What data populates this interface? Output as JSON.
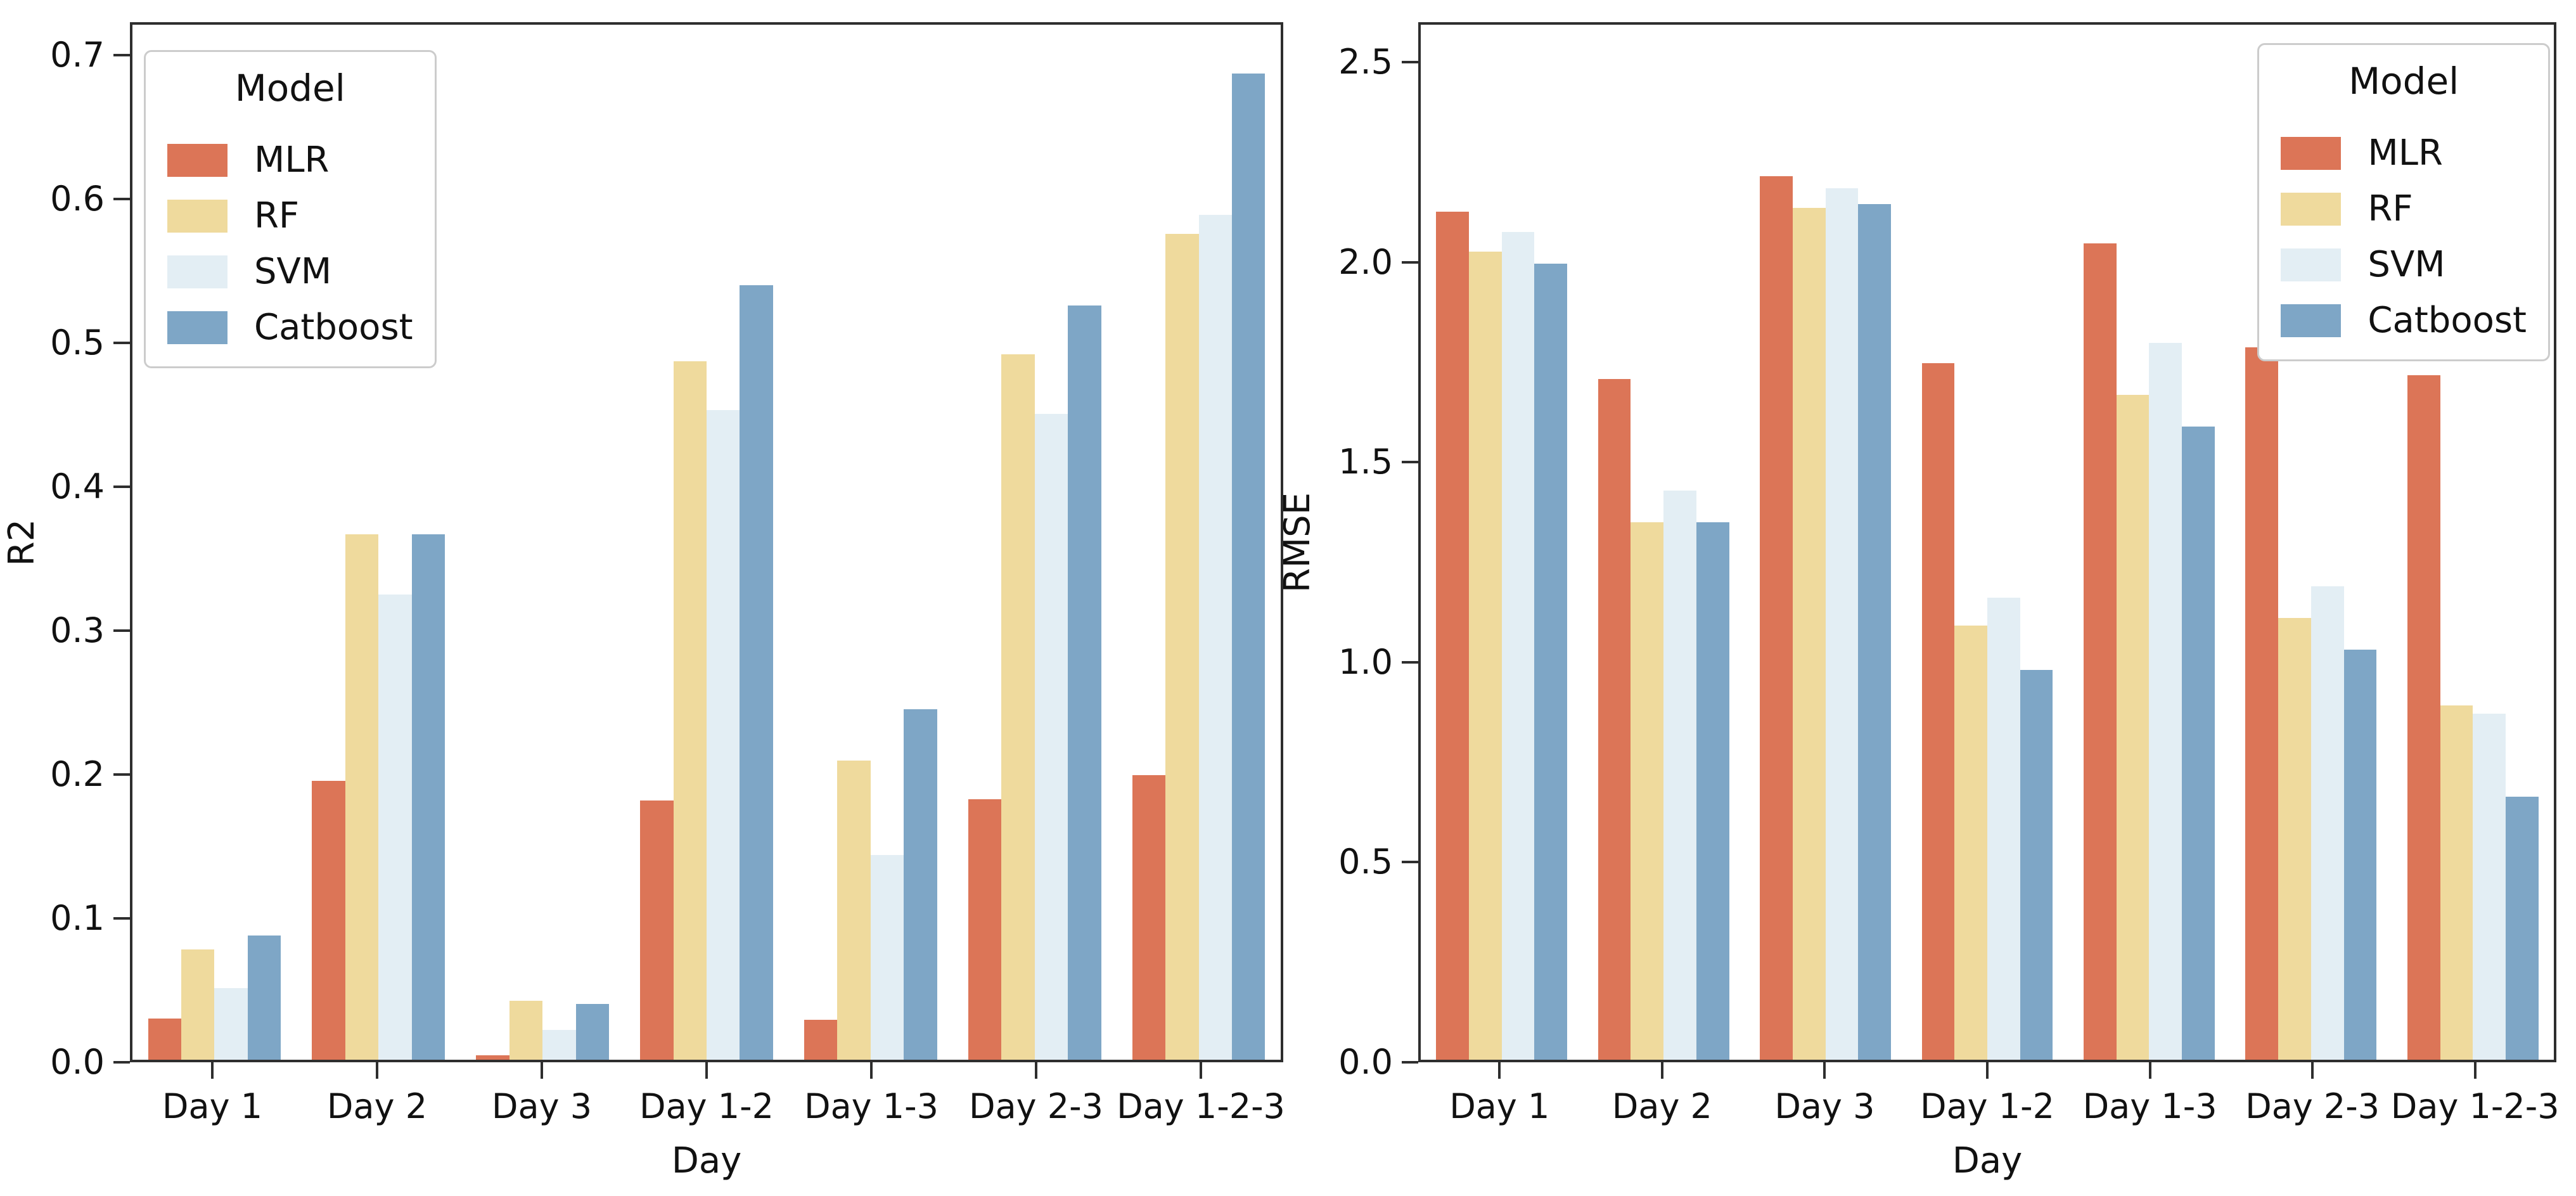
{
  "figure_background": "#ffffff",
  "spine_color": "#2e2e2e",
  "chart_data": [
    {
      "type": "bar",
      "title": "",
      "xlabel": "Day",
      "ylabel": "R2",
      "categories": [
        "Day 1",
        "Day 2",
        "Day 3",
        "Day 1-2",
        "Day 1-3",
        "Day 2-3",
        "Day 1-2-3"
      ],
      "series": [
        {
          "name": "MLR",
          "color": "#DC7557",
          "values": [
            0.029,
            0.195,
            0.003,
            0.181,
            0.028,
            0.182,
            0.199
          ]
        },
        {
          "name": "RF",
          "color": "#EFDA9D",
          "values": [
            0.077,
            0.367,
            0.041,
            0.488,
            0.209,
            0.493,
            0.577
          ]
        },
        {
          "name": "SVM",
          "color": "#E3EEF4",
          "values": [
            0.05,
            0.325,
            0.021,
            0.454,
            0.143,
            0.451,
            0.59
          ]
        },
        {
          "name": "Catboost",
          "color": "#7EA6C6",
          "values": [
            0.087,
            0.367,
            0.039,
            0.541,
            0.245,
            0.527,
            0.689
          ]
        }
      ],
      "ylim": [
        0,
        0.723
      ],
      "yticks": [
        "0.0",
        "0.1",
        "0.2",
        "0.3",
        "0.4",
        "0.5",
        "0.6",
        "0.7"
      ],
      "grid": false,
      "legend": {
        "title": "Model",
        "position": "top-left",
        "entries": [
          "MLR",
          "RF",
          "SVM",
          "Catboost"
        ]
      }
    },
    {
      "type": "bar",
      "title": "",
      "xlabel": "Day",
      "ylabel": "RMSE",
      "categories": [
        "Day 1",
        "Day 2",
        "Day 3",
        "Day 1-2",
        "Day 1-3",
        "Day 2-3",
        "Day 1-2-3"
      ],
      "series": [
        {
          "name": "MLR",
          "color": "#DC7557",
          "values": [
            2.13,
            1.71,
            2.22,
            1.75,
            2.05,
            1.79,
            1.72
          ]
        },
        {
          "name": "RF",
          "color": "#EFDA9D",
          "values": [
            2.03,
            1.35,
            2.14,
            1.09,
            1.67,
            1.11,
            0.89
          ]
        },
        {
          "name": "SVM",
          "color": "#E3EEF4",
          "values": [
            2.08,
            1.43,
            2.19,
            1.16,
            1.8,
            1.19,
            0.87
          ]
        },
        {
          "name": "Catboost",
          "color": "#7EA6C6",
          "values": [
            2.0,
            1.35,
            2.15,
            0.98,
            1.59,
            1.03,
            0.66
          ]
        }
      ],
      "ylim": [
        0,
        2.6
      ],
      "yticks": [
        "0.0",
        "0.5",
        "1.0",
        "1.5",
        "2.0",
        "2.5"
      ],
      "grid": false,
      "legend": {
        "title": "Model",
        "position": "top-right",
        "entries": [
          "MLR",
          "RF",
          "SVM",
          "Catboost"
        ]
      }
    }
  ]
}
